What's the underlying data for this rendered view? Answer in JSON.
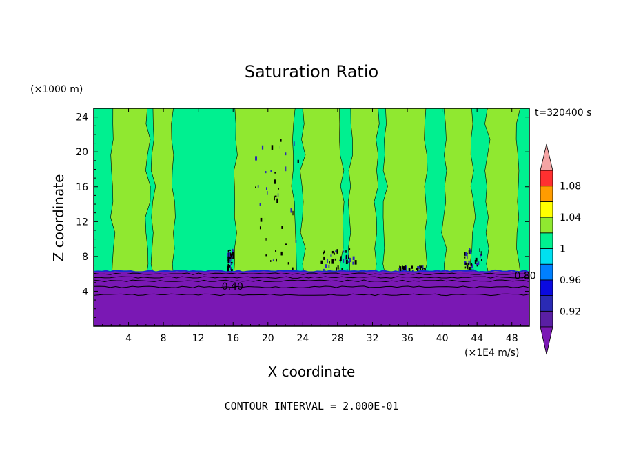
{
  "chart_data": {
    "type": "heatmap",
    "title": "Saturation Ratio",
    "xlabel": "X coordinate",
    "ylabel": "Z coordinate",
    "x_unit": "(×1E4 m/s)",
    "y_unit": "(×1000 m)",
    "time_label": "t=320400 s",
    "footer": "CONTOUR INTERVAL = 2.000E-01",
    "xlim": [
      0,
      50
    ],
    "ylim": [
      0,
      25
    ],
    "x_ticks": [
      "4",
      "8",
      "12",
      "16",
      "20",
      "24",
      "28",
      "32",
      "36",
      "40",
      "44",
      "48"
    ],
    "y_ticks": [
      "4",
      "8",
      "12",
      "16",
      "20",
      "24"
    ],
    "contour_labels": [
      {
        "text": "0.40",
        "x": 14.7,
        "z": 4.6
      },
      {
        "text": "0.80",
        "x": 48.3,
        "z": 5.8
      }
    ],
    "colorbar": {
      "tick_labels": [
        "1.08",
        "1.04",
        "1",
        "0.96",
        "0.92"
      ],
      "levels": [
        0.9,
        0.92,
        0.94,
        0.96,
        0.98,
        1.0,
        1.02,
        1.04,
        1.06,
        1.08,
        1.1
      ],
      "colors": [
        "#5a1fa4",
        "#2a2ab4",
        "#0a0ae0",
        "#0080ff",
        "#00e0f0",
        "#00f090",
        "#90e830",
        "#ffff00",
        "#ff9c00",
        "#ff3030",
        "#f4a4a4"
      ],
      "under_color": "#7a18b4",
      "over_color": "#f4a4a4"
    },
    "layers": {
      "dry_layer_top_z": 6.3,
      "dry_value": "< 0.90",
      "upper_value_range": [
        0.98,
        1.02
      ],
      "supersaturated_columns_x": [
        [
          2.2,
          6.2
        ],
        [
          6.8,
          9.2
        ],
        [
          16.2,
          23.0
        ],
        [
          24.0,
          28.5
        ],
        [
          29.5,
          32.5
        ],
        [
          33.5,
          38.0
        ],
        [
          40.2,
          43.5
        ],
        [
          45.2,
          48.8
        ]
      ]
    }
  }
}
